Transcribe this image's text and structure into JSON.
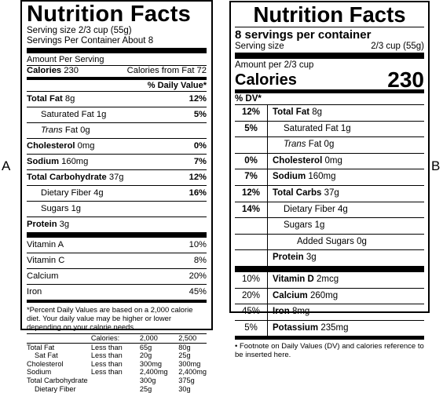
{
  "side_labels": {
    "a": "A",
    "b": "B"
  },
  "label_a": {
    "title": "Nutrition Facts",
    "serving_size": "Serving size 2/3 cup (55g)",
    "servings_per_container": "Servings Per Container About 8",
    "amount_per_serving": "Amount Per Serving",
    "calories_label": "Calories",
    "calories_value": "230",
    "calories_from_fat": "Calories from Fat 72",
    "dv_header": "% Daily Value*",
    "nutrients": [
      {
        "name": "Total Fat",
        "amount": "8g",
        "dv": "12%"
      },
      {
        "name": "Saturated Fat",
        "amount": "1g",
        "dv": "5%"
      },
      {
        "name": "Trans",
        "amount": "Fat 0g",
        "dv": ""
      },
      {
        "name": "Cholesterol",
        "amount": "0mg",
        "dv": "0%"
      },
      {
        "name": "Sodium",
        "amount": "160mg",
        "dv": "7%"
      },
      {
        "name": "Total Carbohydrate",
        "amount": "37g",
        "dv": "12%"
      },
      {
        "name": "Dietary Fiber",
        "amount": "4g",
        "dv": "16%"
      },
      {
        "name": "Sugars",
        "amount": "1g",
        "dv": ""
      },
      {
        "name": "Protein",
        "amount": "3g",
        "dv": ""
      }
    ],
    "vitamins": [
      {
        "name": "Vitamin A",
        "dv": "10%"
      },
      {
        "name": "Vitamin C",
        "dv": "8%"
      },
      {
        "name": "Calcium",
        "dv": "20%"
      },
      {
        "name": "Iron",
        "dv": "45%"
      }
    ],
    "footnote": "*Percent Daily Values are based on a 2,000 calorie diet. Your daily value may be higher or lower depending on your calorie needs.",
    "dv_table": {
      "header": [
        "",
        "Calories:",
        "2,000",
        "2,500"
      ],
      "rows": [
        [
          "Total Fat",
          "Less than",
          "65g",
          "80g"
        ],
        [
          "Sat Fat",
          "Less than",
          "20g",
          "25g"
        ],
        [
          "Cholesterol",
          "Less than",
          "300mg",
          "300mg"
        ],
        [
          "Sodium",
          "Less than",
          "2,400mg",
          "2,400mg"
        ],
        [
          "Total Carbohydrate",
          "",
          "300g",
          "375g"
        ],
        [
          "Dietary Fiber",
          "",
          "25g",
          "30g"
        ]
      ]
    }
  },
  "label_b": {
    "title": "Nutrition Facts",
    "servings": "8 servings per container",
    "serving_size_label": "Serving size",
    "serving_size_value": "2/3 cup (55g)",
    "amount_per": "Amount per 2/3 cup",
    "calories_label": "Calories",
    "calories_value": "230",
    "dv_header": "% DV*",
    "nutrients": [
      {
        "dv": "12%",
        "name": "Total Fat",
        "amount": "8g"
      },
      {
        "dv": "5%",
        "name": "Saturated Fat",
        "amount": "1g"
      },
      {
        "dv": "",
        "name": "Trans",
        "amount": "Fat 0g"
      },
      {
        "dv": "0%",
        "name": "Cholesterol",
        "amount": "0mg"
      },
      {
        "dv": "7%",
        "name": "Sodium",
        "amount": "160mg"
      },
      {
        "dv": "12%",
        "name": "Total Carbs",
        "amount": "37g"
      },
      {
        "dv": "14%",
        "name": "Dietary Fiber",
        "amount": "4g"
      },
      {
        "dv": "",
        "name": "Sugars",
        "amount": "1g"
      },
      {
        "dv": "",
        "name": "Added Sugars",
        "amount": "0g"
      },
      {
        "dv": "",
        "name": "Protein",
        "amount": "3g"
      }
    ],
    "vitamins": [
      {
        "dv": "10%",
        "name": "Vitamin D",
        "amount": "2mcg"
      },
      {
        "dv": "20%",
        "name": "Calcium",
        "amount": "260mg"
      },
      {
        "dv": "45%",
        "name": "Iron",
        "amount": "8mg"
      },
      {
        "dv": "5%",
        "name": "Potassium",
        "amount": "235mg"
      }
    ],
    "footnote": "• Footnote on Daily Values (DV) and calories reference to be inserted here."
  }
}
